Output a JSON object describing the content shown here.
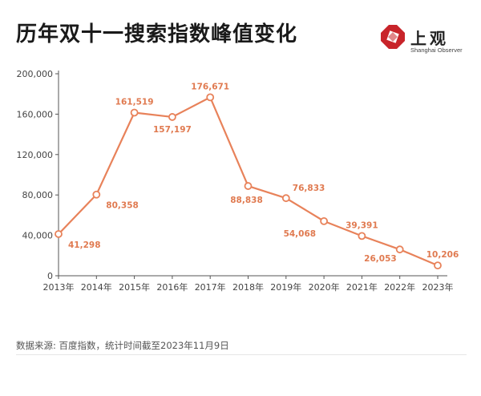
{
  "title": "历年双十一搜索指数峰值变化",
  "logo": {
    "name": "上观",
    "subtitle": "Shanghai Observer",
    "color": "#c8242a"
  },
  "footer": "数据来源: 百度指数，统计时间截至2023年11月9日",
  "colors": {
    "line": "#e8825a",
    "label": "#e07a50",
    "axis": "#555555",
    "grid": "#e8e8e8"
  },
  "chart_data": {
    "type": "line",
    "title": "历年双十一搜索指数峰值变化",
    "xlabel": "",
    "ylabel": "",
    "ylim": [
      0,
      200000
    ],
    "yticks": [
      0,
      40000,
      80000,
      120000,
      160000,
      200000
    ],
    "ytick_labels": [
      "0",
      "40,000",
      "80,000",
      "120,000",
      "160,000",
      "200,000"
    ],
    "grid": false,
    "categories": [
      "2013年",
      "2014年",
      "2015年",
      "2016年",
      "2017年",
      "2018年",
      "2019年",
      "2020年",
      "2021年",
      "2022年",
      "2023年"
    ],
    "values": [
      41298,
      80358,
      161519,
      157197,
      176671,
      88838,
      76833,
      54068,
      39391,
      26053,
      10206
    ],
    "value_labels": [
      "41,298",
      "80,358",
      "161,519",
      "157,197",
      "176,671",
      "88,838",
      "76,833",
      "54,068",
      "39,391",
      "26,053",
      "10,206"
    ]
  }
}
